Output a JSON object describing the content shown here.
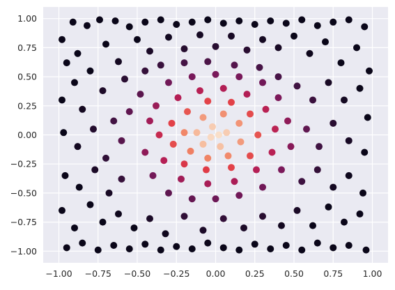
{
  "chart_data": {
    "type": "scatter",
    "title": "",
    "xlabel": "",
    "ylabel": "",
    "xlim": [
      -1.1,
      1.1
    ],
    "ylim": [
      -1.1,
      1.1
    ],
    "x_ticks": [
      "−1.00",
      "−0.75",
      "−0.50",
      "−0.25",
      "0.00",
      "0.25",
      "0.50",
      "0.75",
      "1.00"
    ],
    "y_ticks": [
      "1.00",
      "0.75",
      "0.50",
      "0.25",
      "0.00",
      "−0.25",
      "−0.50",
      "−0.75",
      "−1.00"
    ],
    "grid": true,
    "background": "#eaeaf2",
    "grid_color": "#ffffff",
    "colormap": "rocket",
    "color_encoding": "radial distance from origin (bright center, dark edges)",
    "points": [
      {
        "x": -0.98,
        "y": 0.82
      },
      {
        "x": -0.91,
        "y": 0.97
      },
      {
        "x": -0.82,
        "y": 0.94
      },
      {
        "x": -0.74,
        "y": 0.99
      },
      {
        "x": -0.64,
        "y": 0.98
      },
      {
        "x": -0.55,
        "y": 0.93
      },
      {
        "x": -0.45,
        "y": 0.97
      },
      {
        "x": -0.35,
        "y": 0.99
      },
      {
        "x": -0.25,
        "y": 0.95
      },
      {
        "x": -0.15,
        "y": 0.97
      },
      {
        "x": -0.05,
        "y": 0.99
      },
      {
        "x": 0.05,
        "y": 0.96
      },
      {
        "x": 0.15,
        "y": 0.98
      },
      {
        "x": 0.25,
        "y": 0.95
      },
      {
        "x": 0.35,
        "y": 0.98
      },
      {
        "x": 0.45,
        "y": 0.96
      },
      {
        "x": 0.55,
        "y": 0.99
      },
      {
        "x": 0.65,
        "y": 0.94
      },
      {
        "x": 0.75,
        "y": 0.97
      },
      {
        "x": 0.85,
        "y": 0.99
      },
      {
        "x": 0.95,
        "y": 0.93
      },
      {
        "x": -0.95,
        "y": 0.62
      },
      {
        "x": -0.88,
        "y": 0.7
      },
      {
        "x": -0.8,
        "y": 0.55
      },
      {
        "x": -0.7,
        "y": 0.78
      },
      {
        "x": -0.62,
        "y": 0.63
      },
      {
        "x": -0.5,
        "y": 0.82
      },
      {
        "x": -0.42,
        "y": 0.72
      },
      {
        "x": -0.3,
        "y": 0.84
      },
      {
        "x": -0.2,
        "y": 0.74
      },
      {
        "x": -0.1,
        "y": 0.86
      },
      {
        "x": 0.0,
        "y": 0.76
      },
      {
        "x": 0.1,
        "y": 0.85
      },
      {
        "x": 0.2,
        "y": 0.73
      },
      {
        "x": 0.3,
        "y": 0.82
      },
      {
        "x": 0.4,
        "y": 0.75
      },
      {
        "x": 0.5,
        "y": 0.85
      },
      {
        "x": 0.6,
        "y": 0.7
      },
      {
        "x": 0.7,
        "y": 0.8
      },
      {
        "x": 0.8,
        "y": 0.62
      },
      {
        "x": 0.9,
        "y": 0.75
      },
      {
        "x": 0.98,
        "y": 0.55
      },
      {
        "x": -0.98,
        "y": 0.3
      },
      {
        "x": -0.9,
        "y": 0.45
      },
      {
        "x": -0.85,
        "y": 0.22
      },
      {
        "x": -0.72,
        "y": 0.38
      },
      {
        "x": -0.65,
        "y": 0.12
      },
      {
        "x": -0.58,
        "y": 0.48
      },
      {
        "x": -0.45,
        "y": 0.55
      },
      {
        "x": -0.35,
        "y": 0.6
      },
      {
        "x": -0.2,
        "y": 0.62
      },
      {
        "x": -0.05,
        "y": 0.63
      },
      {
        "x": 0.12,
        "y": 0.6
      },
      {
        "x": 0.28,
        "y": 0.58
      },
      {
        "x": 0.4,
        "y": 0.5
      },
      {
        "x": 0.52,
        "y": 0.42
      },
      {
        "x": 0.62,
        "y": 0.3
      },
      {
        "x": 0.72,
        "y": 0.45
      },
      {
        "x": 0.82,
        "y": 0.3
      },
      {
        "x": 0.92,
        "y": 0.4
      },
      {
        "x": 0.97,
        "y": 0.15
      },
      {
        "x": -0.97,
        "y": 0.02
      },
      {
        "x": -0.88,
        "y": -0.1
      },
      {
        "x": -0.78,
        "y": 0.05
      },
      {
        "x": -0.7,
        "y": -0.2
      },
      {
        "x": -0.6,
        "y": -0.05
      },
      {
        "x": -0.55,
        "y": 0.2
      },
      {
        "x": 0.58,
        "y": 0.05
      },
      {
        "x": 0.66,
        "y": -0.1
      },
      {
        "x": 0.75,
        "y": 0.1
      },
      {
        "x": 0.85,
        "y": -0.05
      },
      {
        "x": 0.95,
        "y": -0.15
      },
      {
        "x": -0.96,
        "y": -0.35
      },
      {
        "x": -0.87,
        "y": -0.45
      },
      {
        "x": -0.77,
        "y": -0.3
      },
      {
        "x": -0.68,
        "y": -0.5
      },
      {
        "x": -0.6,
        "y": -0.38
      },
      {
        "x": 0.55,
        "y": -0.4
      },
      {
        "x": 0.65,
        "y": -0.3
      },
      {
        "x": 0.75,
        "y": -0.45
      },
      {
        "x": 0.85,
        "y": -0.35
      },
      {
        "x": 0.94,
        "y": -0.5
      },
      {
        "x": -0.98,
        "y": -0.65
      },
      {
        "x": -0.9,
        "y": -0.8
      },
      {
        "x": -0.8,
        "y": -0.6
      },
      {
        "x": -0.72,
        "y": -0.75
      },
      {
        "x": -0.62,
        "y": -0.68
      },
      {
        "x": -0.52,
        "y": -0.8
      },
      {
        "x": -0.42,
        "y": -0.72
      },
      {
        "x": -0.32,
        "y": -0.85
      },
      {
        "x": -0.2,
        "y": -0.7
      },
      {
        "x": -0.08,
        "y": -0.82
      },
      {
        "x": 0.05,
        "y": -0.72
      },
      {
        "x": 0.18,
        "y": -0.8
      },
      {
        "x": 0.3,
        "y": -0.7
      },
      {
        "x": 0.42,
        "y": -0.78
      },
      {
        "x": 0.52,
        "y": -0.65
      },
      {
        "x": 0.62,
        "y": -0.78
      },
      {
        "x": 0.72,
        "y": -0.62
      },
      {
        "x": 0.82,
        "y": -0.75
      },
      {
        "x": 0.92,
        "y": -0.68
      },
      {
        "x": -0.95,
        "y": -0.97
      },
      {
        "x": -0.85,
        "y": -0.93
      },
      {
        "x": -0.75,
        "y": -0.99
      },
      {
        "x": -0.65,
        "y": -0.95
      },
      {
        "x": -0.55,
        "y": -0.98
      },
      {
        "x": -0.45,
        "y": -0.94
      },
      {
        "x": -0.35,
        "y": -0.99
      },
      {
        "x": -0.25,
        "y": -0.96
      },
      {
        "x": -0.15,
        "y": -0.98
      },
      {
        "x": -0.05,
        "y": -0.93
      },
      {
        "x": 0.05,
        "y": -0.97
      },
      {
        "x": 0.15,
        "y": -0.99
      },
      {
        "x": 0.25,
        "y": -0.94
      },
      {
        "x": 0.35,
        "y": -0.98
      },
      {
        "x": 0.45,
        "y": -0.95
      },
      {
        "x": 0.55,
        "y": -0.99
      },
      {
        "x": 0.65,
        "y": -0.93
      },
      {
        "x": 0.75,
        "y": -0.97
      },
      {
        "x": 0.85,
        "y": -0.95
      },
      {
        "x": 0.96,
        "y": -0.99
      },
      {
        "x": -0.48,
        "y": 0.35
      },
      {
        "x": -0.42,
        "y": 0.12
      },
      {
        "x": -0.45,
        "y": -0.15
      },
      {
        "x": -0.4,
        "y": -0.35
      },
      {
        "x": -0.3,
        "y": -0.5
      },
      {
        "x": -0.15,
        "y": -0.55
      },
      {
        "x": 0.0,
        "y": -0.55
      },
      {
        "x": 0.15,
        "y": -0.52
      },
      {
        "x": 0.3,
        "y": -0.45
      },
      {
        "x": 0.42,
        "y": -0.3
      },
      {
        "x": 0.48,
        "y": -0.1
      },
      {
        "x": 0.46,
        "y": 0.12
      },
      {
        "x": 0.4,
        "y": 0.32
      },
      {
        "x": 0.3,
        "y": 0.45
      },
      {
        "x": 0.15,
        "y": 0.5
      },
      {
        "x": 0.0,
        "y": 0.52
      },
      {
        "x": -0.15,
        "y": 0.5
      },
      {
        "x": -0.3,
        "y": 0.45
      },
      {
        "x": -0.38,
        "y": 0.25
      },
      {
        "x": -0.36,
        "y": 0.0
      },
      {
        "x": -0.33,
        "y": -0.22
      },
      {
        "x": -0.22,
        "y": -0.38
      },
      {
        "x": -0.05,
        "y": -0.42
      },
      {
        "x": 0.12,
        "y": -0.4
      },
      {
        "x": 0.26,
        "y": -0.3
      },
      {
        "x": 0.36,
        "y": -0.15
      },
      {
        "x": 0.38,
        "y": 0.05
      },
      {
        "x": 0.32,
        "y": 0.22
      },
      {
        "x": 0.2,
        "y": 0.35
      },
      {
        "x": 0.05,
        "y": 0.4
      },
      {
        "x": -0.1,
        "y": 0.38
      },
      {
        "x": -0.24,
        "y": 0.32
      },
      {
        "x": -0.28,
        "y": 0.1
      },
      {
        "x": -0.27,
        "y": -0.08
      },
      {
        "x": -0.2,
        "y": -0.25
      },
      {
        "x": -0.06,
        "y": -0.3
      },
      {
        "x": 0.1,
        "y": -0.28
      },
      {
        "x": 0.22,
        "y": -0.18
      },
      {
        "x": 0.27,
        "y": 0.0
      },
      {
        "x": 0.22,
        "y": 0.18
      },
      {
        "x": 0.1,
        "y": 0.28
      },
      {
        "x": -0.05,
        "y": 0.29
      },
      {
        "x": -0.18,
        "y": 0.2
      },
      {
        "x": -0.2,
        "y": 0.02
      },
      {
        "x": -0.16,
        "y": -0.14
      },
      {
        "x": -0.05,
        "y": -0.2
      },
      {
        "x": 0.08,
        "y": -0.18
      },
      {
        "x": 0.16,
        "y": -0.06
      },
      {
        "x": 0.15,
        "y": 0.1
      },
      {
        "x": 0.05,
        "y": 0.18
      },
      {
        "x": -0.08,
        "y": 0.15
      },
      {
        "x": -0.12,
        "y": 0.02
      },
      {
        "x": -0.08,
        "y": -0.08
      },
      {
        "x": 0.03,
        "y": -0.1
      },
      {
        "x": 0.07,
        "y": 0.02
      },
      {
        "x": -0.02,
        "y": 0.07
      },
      {
        "x": -0.03,
        "y": -0.02
      },
      {
        "x": 0.02,
        "y": 0.0
      }
    ]
  }
}
